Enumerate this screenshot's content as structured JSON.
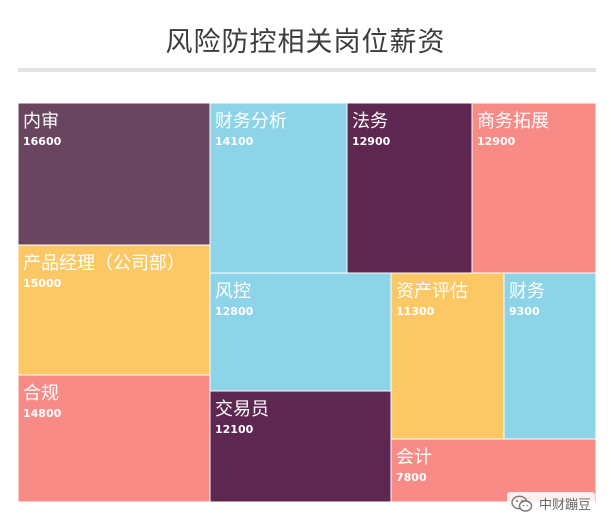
{
  "watermark": {
    "text": "中财蹦豆",
    "icon": "wechat-icon"
  },
  "chart_data": {
    "type": "treemap",
    "title": "风险防控相关岗位薪资",
    "colors": {
      "purple": "#6a4560",
      "blue": "#8ed4e8",
      "plum": "#5e2752",
      "pink": "#f98b87",
      "yellow": "#fbc865",
      "grid": "#ffffff"
    },
    "items": [
      {
        "name": "内审",
        "value": 16600,
        "color": "purple"
      },
      {
        "name": "财务分析",
        "value": 14100,
        "color": "blue"
      },
      {
        "name": "法务",
        "value": 12900,
        "color": "plum"
      },
      {
        "name": "商务拓展",
        "value": 12900,
        "color": "pink"
      },
      {
        "name": "产品经理（公司部）",
        "value": 15000,
        "color": "yellow"
      },
      {
        "name": "风控",
        "value": 12800,
        "color": "blue"
      },
      {
        "name": "资产评估",
        "value": 11300,
        "color": "yellow"
      },
      {
        "name": "财务",
        "value": 9300,
        "color": "blue"
      },
      {
        "name": "合规",
        "value": 14800,
        "color": "pink"
      },
      {
        "name": "交易员",
        "value": 12100,
        "color": "plum"
      },
      {
        "name": "会计",
        "value": 7800,
        "color": "pink"
      }
    ]
  }
}
